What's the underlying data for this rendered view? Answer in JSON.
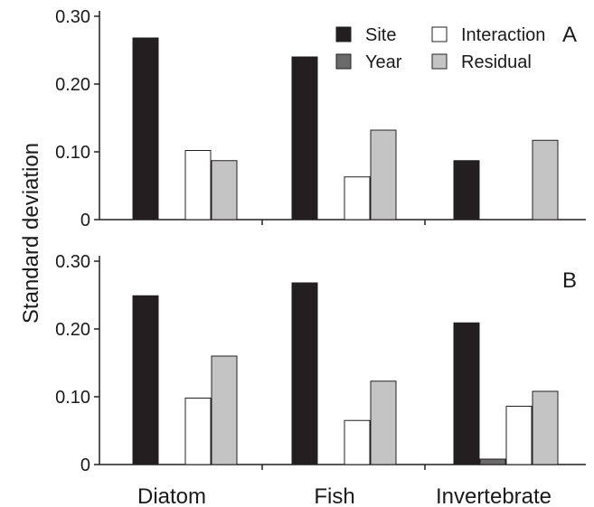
{
  "chart_data": {
    "type": "bar",
    "ylabel": "Standard deviation",
    "categories": [
      "Diatom",
      "Fish",
      "Invertebrate"
    ],
    "ylim": [
      0,
      0.3
    ],
    "yticks": [
      0,
      0.1,
      0.2,
      0.3
    ],
    "ytick_labels": [
      "0",
      "0.10",
      "0.20",
      "0.30"
    ],
    "legend": {
      "placement": "top-right",
      "entries": [
        {
          "name": "Site",
          "color": "#231f20"
        },
        {
          "name": "Interaction",
          "color": "#ffffff"
        },
        {
          "name": "Year",
          "color": "#6b6b6b"
        },
        {
          "name": "Residual",
          "color": "#c4c4c4"
        }
      ]
    },
    "panels": [
      {
        "label": "A",
        "series": [
          {
            "name": "Site",
            "values": [
              0.268,
              0.24,
              0.087
            ]
          },
          {
            "name": "Year",
            "values": [
              0,
              0,
              0
            ]
          },
          {
            "name": "Interaction",
            "values": [
              0.102,
              0.063,
              0
            ]
          },
          {
            "name": "Residual",
            "values": [
              0.087,
              0.132,
              0.117
            ]
          }
        ]
      },
      {
        "label": "B",
        "series": [
          {
            "name": "Site",
            "values": [
              0.249,
              0.268,
              0.209
            ]
          },
          {
            "name": "Year",
            "values": [
              0,
              0,
              0.008
            ]
          },
          {
            "name": "Interaction",
            "values": [
              0.098,
              0.065,
              0.086
            ]
          },
          {
            "name": "Residual",
            "values": [
              0.16,
              0.123,
              0.108
            ]
          }
        ]
      }
    ],
    "colors": {
      "Site": "#231f20",
      "Year": "#6b6b6b",
      "Interaction": "#ffffff",
      "Residual": "#c4c4c4"
    }
  }
}
